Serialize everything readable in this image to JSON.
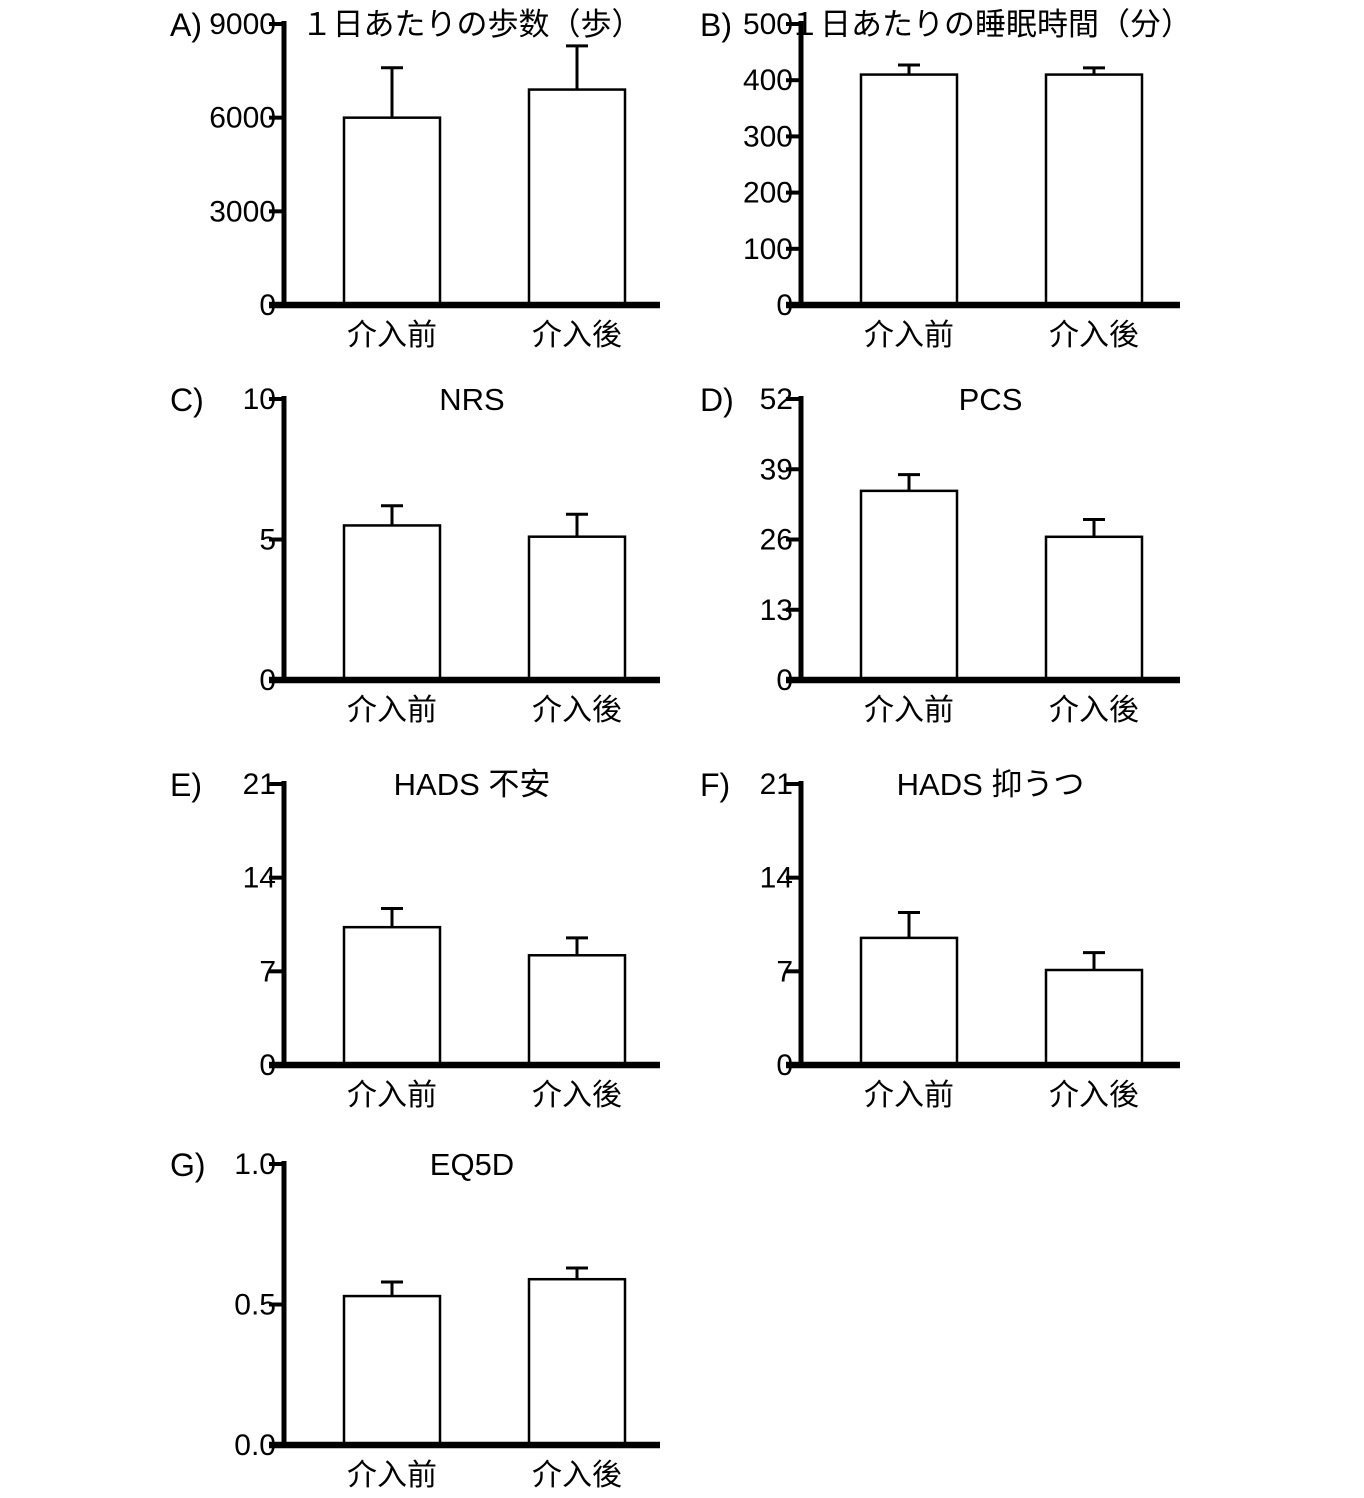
{
  "figure": {
    "background_color": "#ffffff",
    "ink_color": "#000000",
    "description_labels": {
      "pre": "介入前",
      "post": "介入後"
    }
  },
  "chart_data": [
    {
      "type": "bar",
      "panel_label": "A)",
      "title": "１日あたりの歩数（歩）",
      "categories": [
        "介入前",
        "介入後"
      ],
      "values": [
        6000,
        6900
      ],
      "errors": [
        1600,
        1400
      ],
      "ylim": [
        0,
        9000
      ],
      "yticks": [
        0,
        3000,
        6000,
        9000
      ],
      "ytick_labels": [
        "0",
        "3000",
        "6000",
        "9000"
      ],
      "xlabel": "",
      "ylabel": "",
      "grid": "off",
      "legend": "none",
      "bar_fill": "#ffffff",
      "bar_stroke": "#000000"
    },
    {
      "type": "bar",
      "panel_label": "B)",
      "title": "１日あたりの睡眠時間（分）",
      "categories": [
        "介入前",
        "介入後"
      ],
      "values": [
        410,
        410
      ],
      "errors": [
        17,
        12
      ],
      "ylim": [
        0,
        500
      ],
      "yticks": [
        0,
        100,
        200,
        300,
        400,
        500
      ],
      "ytick_labels": [
        "0",
        "100",
        "200",
        "300",
        "400",
        "500"
      ],
      "xlabel": "",
      "ylabel": "",
      "grid": "off",
      "legend": "none",
      "bar_fill": "#ffffff",
      "bar_stroke": "#000000"
    },
    {
      "type": "bar",
      "panel_label": "C)",
      "title": "NRS",
      "categories": [
        "介入前",
        "介入後"
      ],
      "values": [
        5.5,
        5.1
      ],
      "errors": [
        0.7,
        0.8
      ],
      "ylim": [
        0,
        10
      ],
      "yticks": [
        0,
        5,
        10
      ],
      "ytick_labels": [
        "0",
        "5",
        "10"
      ],
      "xlabel": "",
      "ylabel": "",
      "grid": "off",
      "legend": "none",
      "bar_fill": "#ffffff",
      "bar_stroke": "#000000"
    },
    {
      "type": "bar",
      "panel_label": "D)",
      "title": "PCS",
      "categories": [
        "介入前",
        "介入後"
      ],
      "values": [
        35,
        26.5
      ],
      "errors": [
        3,
        3.2
      ],
      "ylim": [
        0,
        52
      ],
      "yticks": [
        0,
        13,
        26,
        39,
        52
      ],
      "ytick_labels": [
        "0",
        "13",
        "26",
        "39",
        "52"
      ],
      "xlabel": "",
      "ylabel": "",
      "grid": "off",
      "legend": "none",
      "bar_fill": "#ffffff",
      "bar_stroke": "#000000"
    },
    {
      "type": "bar",
      "panel_label": "E)",
      "title": "HADS 不安",
      "categories": [
        "介入前",
        "介入後"
      ],
      "values": [
        10.3,
        8.2
      ],
      "errors": [
        1.4,
        1.3
      ],
      "ylim": [
        0,
        21
      ],
      "yticks": [
        0,
        7,
        14,
        21
      ],
      "ytick_labels": [
        "0",
        "7",
        "14",
        "21"
      ],
      "xlabel": "",
      "ylabel": "",
      "grid": "off",
      "legend": "none",
      "bar_fill": "#ffffff",
      "bar_stroke": "#000000"
    },
    {
      "type": "bar",
      "panel_label": "F)",
      "title": "HADS 抑うつ",
      "categories": [
        "介入前",
        "介入後"
      ],
      "values": [
        9.5,
        7.1
      ],
      "errors": [
        1.9,
        1.3
      ],
      "ylim": [
        0,
        21
      ],
      "yticks": [
        0,
        7,
        14,
        21
      ],
      "ytick_labels": [
        "0",
        "7",
        "14",
        "21"
      ],
      "xlabel": "",
      "ylabel": "",
      "grid": "off",
      "legend": "none",
      "bar_fill": "#ffffff",
      "bar_stroke": "#000000"
    },
    {
      "type": "bar",
      "panel_label": "G)",
      "title": "EQ5D",
      "categories": [
        "介入前",
        "介入後"
      ],
      "values": [
        0.53,
        0.59
      ],
      "errors": [
        0.05,
        0.04
      ],
      "ylim": [
        0,
        1.0
      ],
      "yticks": [
        0,
        0.5,
        1.0
      ],
      "ytick_labels": [
        "0.0",
        "0.5",
        "1.0"
      ],
      "xlabel": "",
      "ylabel": "",
      "grid": "off",
      "legend": "none",
      "bar_fill": "#ffffff",
      "bar_stroke": "#000000"
    }
  ]
}
